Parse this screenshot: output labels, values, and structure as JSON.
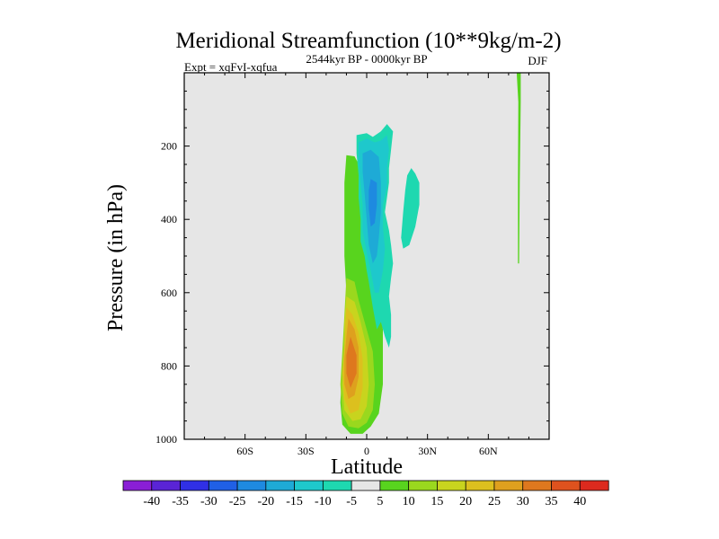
{
  "chart_data": {
    "type": "heatmap",
    "title": "Meridional Streamfunction (10**9kg/m-2)",
    "subtitle_left": "Expt = xqFvI-xqfua",
    "subtitle_center": "2544kyr BP - 0000kyr BP",
    "subtitle_right": "DJF",
    "xlabel": "Latitude",
    "ylabel": "Pressure (in hPa)",
    "xlim": [
      -90,
      90
    ],
    "ylim": [
      1000,
      0
    ],
    "x_ticks": [
      {
        "value": -60,
        "label": "60S"
      },
      {
        "value": -30,
        "label": "30S"
      },
      {
        "value": 0,
        "label": "0"
      },
      {
        "value": 30,
        "label": "30N"
      },
      {
        "value": 60,
        "label": "60N"
      }
    ],
    "y_ticks": [
      {
        "value": 200,
        "label": "200"
      },
      {
        "value": 400,
        "label": "400"
      },
      {
        "value": 600,
        "label": "600"
      },
      {
        "value": 800,
        "label": "800"
      },
      {
        "value": 1000,
        "label": "1000"
      }
    ],
    "background_color": "#e6e6e6",
    "colorbar": {
      "labels": [
        "-40",
        "-35",
        "-30",
        "-25",
        "-20",
        "-15",
        "-10",
        "-5",
        "5",
        "10",
        "15",
        "20",
        "25",
        "30",
        "35",
        "40"
      ],
      "colors": [
        "#8a1ed6",
        "#5a24d6",
        "#3030e6",
        "#2060e6",
        "#1e8ae0",
        "#1eaad6",
        "#1ec8cc",
        "#1ed8b0",
        "#e6e6e6",
        "#58d41e",
        "#9ad81e",
        "#c8d41e",
        "#dcc01e",
        "#dea01e",
        "#de781e",
        "#de521e",
        "#dc2a1e"
      ]
    },
    "regions": [
      {
        "name": "positive-cell-5",
        "level": 5,
        "color": "#58d41e",
        "points": [
          [
            -10,
            225
          ],
          [
            -6,
            228
          ],
          [
            -2,
            270
          ],
          [
            0,
            330
          ],
          [
            0,
            420
          ],
          [
            2,
            480
          ],
          [
            4,
            560
          ],
          [
            6,
            620
          ],
          [
            8,
            700
          ],
          [
            8,
            850
          ],
          [
            6,
            930
          ],
          [
            2,
            965
          ],
          [
            -2,
            985
          ],
          [
            -8,
            985
          ],
          [
            -12,
            960
          ],
          [
            -13,
            900
          ],
          [
            -12,
            800
          ],
          [
            -10,
            700
          ],
          [
            -10,
            600
          ],
          [
            -11,
            500
          ],
          [
            -11,
            400
          ],
          [
            -11,
            300
          ]
        ]
      },
      {
        "name": "positive-cell-10",
        "level": 10,
        "color": "#9ad81e",
        "points": [
          [
            -10,
            560
          ],
          [
            -6,
            570
          ],
          [
            -4,
            620
          ],
          [
            -1,
            680
          ],
          [
            3,
            760
          ],
          [
            4,
            850
          ],
          [
            3,
            920
          ],
          [
            0,
            955
          ],
          [
            -4,
            970
          ],
          [
            -9,
            965
          ],
          [
            -12,
            930
          ],
          [
            -13,
            850
          ],
          [
            -12,
            760
          ],
          [
            -11,
            660
          ]
        ]
      },
      {
        "name": "positive-cell-15",
        "level": 15,
        "color": "#c8d41e",
        "points": [
          [
            -10,
            610
          ],
          [
            -6,
            625
          ],
          [
            -3,
            680
          ],
          [
            0,
            750
          ],
          [
            1,
            850
          ],
          [
            0,
            910
          ],
          [
            -3,
            945
          ],
          [
            -7,
            950
          ],
          [
            -11,
            920
          ],
          [
            -12,
            850
          ],
          [
            -11,
            760
          ],
          [
            -11,
            680
          ]
        ]
      },
      {
        "name": "positive-cell-20",
        "level": 20,
        "color": "#dcc01e",
        "points": [
          [
            -10,
            640
          ],
          [
            -7,
            660
          ],
          [
            -4,
            710
          ],
          [
            -2,
            780
          ],
          [
            -2,
            860
          ],
          [
            -4,
            920
          ],
          [
            -8,
            930
          ],
          [
            -11,
            890
          ],
          [
            -12,
            820
          ],
          [
            -11,
            740
          ]
        ]
      },
      {
        "name": "positive-cell-25",
        "level": 25,
        "color": "#dea01e",
        "points": [
          [
            -9,
            670
          ],
          [
            -6,
            700
          ],
          [
            -4,
            750
          ],
          [
            -4,
            830
          ],
          [
            -6,
            880
          ],
          [
            -9,
            890
          ],
          [
            -11,
            850
          ],
          [
            -11,
            780
          ],
          [
            -10,
            720
          ]
        ]
      },
      {
        "name": "positive-cell-30",
        "level": 30,
        "color": "#de781e",
        "points": [
          [
            -8,
            720
          ],
          [
            -5,
            770
          ],
          [
            -5,
            820
          ],
          [
            -8,
            860
          ],
          [
            -10,
            820
          ],
          [
            -10,
            770
          ]
        ]
      },
      {
        "name": "negative-cell-5",
        "level": -5,
        "color": "#1ed8b0",
        "points": [
          [
            -5,
            170
          ],
          [
            0,
            165
          ],
          [
            3,
            175
          ],
          [
            7,
            160
          ],
          [
            10,
            140
          ],
          [
            13,
            160
          ],
          [
            12,
            210
          ],
          [
            11,
            260
          ],
          [
            11,
            300
          ],
          [
            10,
            340
          ],
          [
            9,
            380
          ],
          [
            11,
            430
          ],
          [
            12,
            470
          ],
          [
            13,
            520
          ],
          [
            12,
            560
          ],
          [
            11,
            610
          ],
          [
            12,
            660
          ],
          [
            12,
            720
          ],
          [
            11,
            750
          ],
          [
            9,
            720
          ],
          [
            7,
            680
          ],
          [
            5,
            700
          ],
          [
            3,
            640
          ],
          [
            1,
            570
          ],
          [
            0,
            540
          ],
          [
            -1,
            500
          ],
          [
            -3,
            460
          ],
          [
            -3,
            400
          ],
          [
            -4,
            340
          ],
          [
            -4,
            280
          ],
          [
            -5,
            220
          ]
        ]
      },
      {
        "name": "negative-cell-5-east",
        "level": -5,
        "color": "#1ed8b0",
        "points": [
          [
            22,
            260
          ],
          [
            24,
            275
          ],
          [
            26,
            300
          ],
          [
            26,
            360
          ],
          [
            24,
            420
          ],
          [
            21,
            470
          ],
          [
            18,
            480
          ],
          [
            17,
            450
          ],
          [
            18,
            380
          ],
          [
            19,
            320
          ],
          [
            20,
            280
          ]
        ]
      },
      {
        "name": "negative-cell-10",
        "level": -10,
        "color": "#1ec8cc",
        "points": [
          [
            -4,
            190
          ],
          [
            0,
            180
          ],
          [
            4,
            190
          ],
          [
            7,
            185
          ],
          [
            10,
            170
          ],
          [
            11,
            210
          ],
          [
            10,
            260
          ],
          [
            10,
            310
          ],
          [
            8,
            360
          ],
          [
            8,
            420
          ],
          [
            9,
            480
          ],
          [
            8,
            540
          ],
          [
            6,
            600
          ],
          [
            4,
            600
          ],
          [
            2,
            540
          ],
          [
            0,
            490
          ],
          [
            -2,
            430
          ],
          [
            -2,
            360
          ],
          [
            -3,
            300
          ],
          [
            -4,
            240
          ]
        ]
      },
      {
        "name": "negative-cell-15",
        "level": -15,
        "color": "#1eaad6",
        "points": [
          [
            -2,
            220
          ],
          [
            2,
            210
          ],
          [
            6,
            230
          ],
          [
            7,
            300
          ],
          [
            7,
            380
          ],
          [
            6,
            450
          ],
          [
            5,
            500
          ],
          [
            3,
            520
          ],
          [
            1,
            470
          ],
          [
            0,
            400
          ],
          [
            -1,
            330
          ],
          [
            -2,
            270
          ]
        ]
      },
      {
        "name": "negative-cell-20",
        "level": -20,
        "color": "#1e8ae0",
        "points": [
          [
            2,
            290
          ],
          [
            5,
            300
          ],
          [
            5,
            360
          ],
          [
            4,
            410
          ],
          [
            2,
            420
          ],
          [
            1,
            370
          ],
          [
            1,
            320
          ]
        ]
      },
      {
        "name": "streak-5-north",
        "level": 5,
        "color": "#58d41e",
        "points": [
          [
            74,
            0
          ],
          [
            76,
            0
          ],
          [
            76,
            80
          ],
          [
            75.5,
            300
          ],
          [
            75.2,
            520
          ],
          [
            74.6,
            520
          ],
          [
            74.6,
            300
          ],
          [
            74.8,
            80
          ]
        ]
      }
    ]
  }
}
